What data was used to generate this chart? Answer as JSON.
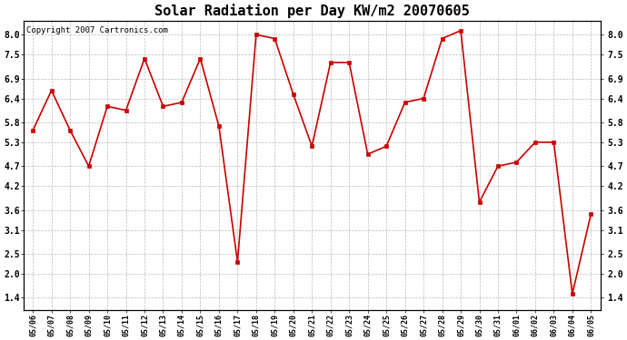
{
  "title": "Solar Radiation per Day KW/m2 20070605",
  "copyright_text": "Copyright 2007 Cartronics.com",
  "dates": [
    "05/06",
    "05/07",
    "05/08",
    "05/09",
    "05/10",
    "05/11",
    "05/12",
    "05/13",
    "05/14",
    "05/15",
    "05/16",
    "05/17",
    "05/18",
    "05/19",
    "05/20",
    "05/21",
    "05/22",
    "05/23",
    "05/24",
    "05/25",
    "05/26",
    "05/27",
    "05/28",
    "05/29",
    "05/30",
    "05/31",
    "06/01",
    "06/02",
    "06/03",
    "06/04",
    "06/05"
  ],
  "values": [
    5.6,
    6.6,
    5.6,
    4.7,
    6.2,
    6.1,
    7.4,
    6.2,
    6.3,
    7.4,
    5.7,
    2.3,
    8.0,
    7.9,
    6.5,
    5.2,
    7.3,
    7.3,
    5.0,
    5.2,
    6.3,
    6.4,
    7.9,
    8.1,
    3.8,
    4.7,
    4.8,
    5.3,
    5.3,
    1.5,
    3.5
  ],
  "line_color": "#cc0000",
  "marker_color": "#cc0000",
  "bg_color": "#ffffff",
  "grid_color": "#bbbbbb",
  "yticks": [
    1.4,
    2.0,
    2.5,
    3.1,
    3.6,
    4.2,
    4.7,
    5.3,
    5.8,
    6.4,
    6.9,
    7.5,
    8.0
  ],
  "ylim": [
    1.1,
    8.35
  ],
  "title_fontsize": 11,
  "copyright_fontsize": 6.5,
  "xlabel_fontsize": 6,
  "ylabel_fontsize": 7
}
